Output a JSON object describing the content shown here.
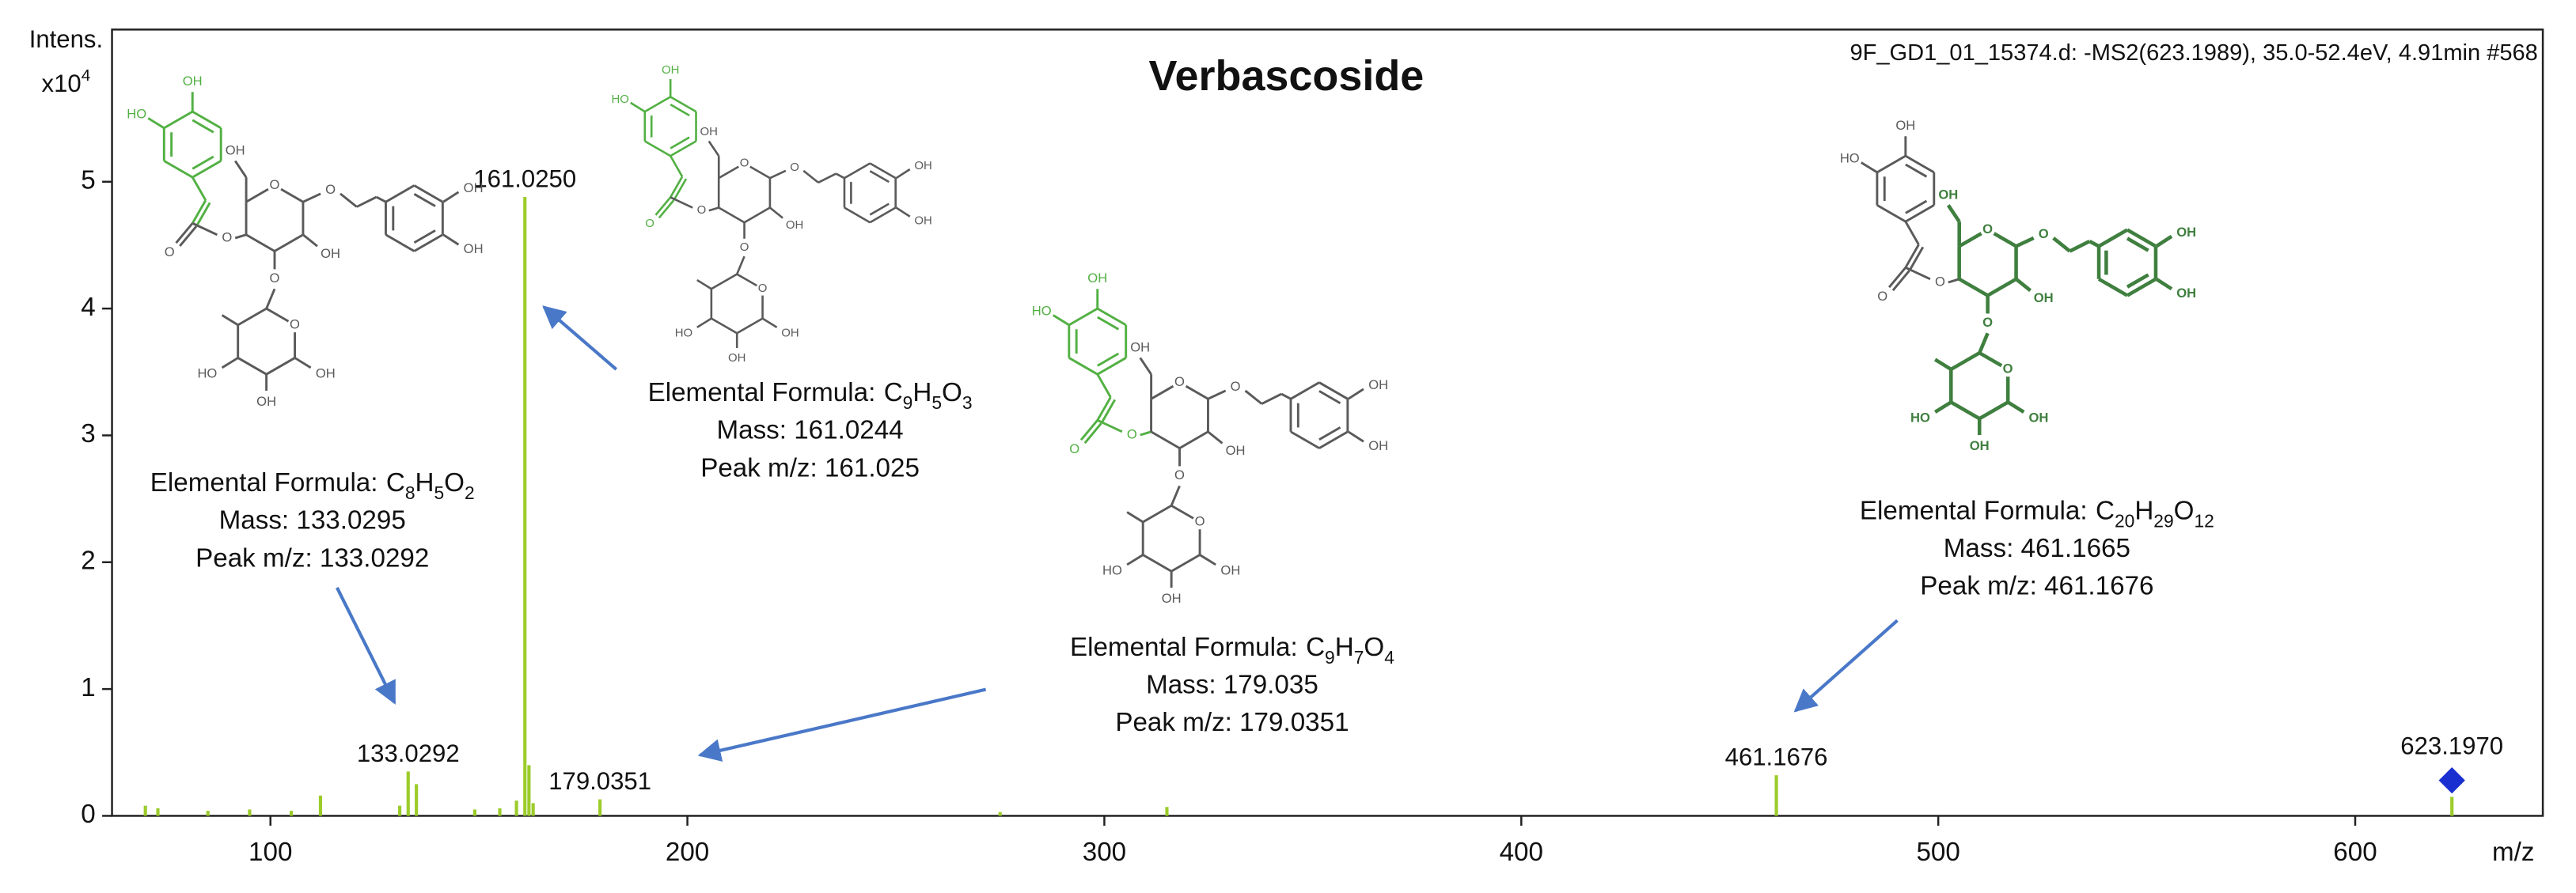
{
  "chart_data": {
    "type": "stem",
    "title": "Verbascoside",
    "info": "9F_GD1_01_15374.d: -MS2(623.1989), 35.0-52.4eV, 4.91min #568",
    "ylabel": "Intens.",
    "yunit_base": "x10",
    "yunit_exp": "4",
    "xlabel": "m/z",
    "xlim": [
      62,
      645
    ],
    "xticks": [
      100,
      200,
      300,
      400,
      500,
      600
    ],
    "ylim": [
      0,
      6.2
    ],
    "yticks": [
      0,
      1,
      2,
      3,
      4,
      5
    ],
    "color": "#9ccc2a",
    "x": [
      70,
      73,
      85,
      95,
      105,
      112,
      131,
      133.0292,
      135,
      149,
      155,
      159,
      161.025,
      162,
      163,
      179.0351,
      275,
      315,
      461.1676,
      623.197
    ],
    "values": [
      0.08,
      0.06,
      0.04,
      0.05,
      0.04,
      0.16,
      0.08,
      0.35,
      0.25,
      0.05,
      0.06,
      0.12,
      4.88,
      0.4,
      0.1,
      0.13,
      0.03,
      0.07,
      0.32,
      0.15
    ],
    "x_labels": [
      null,
      null,
      null,
      null,
      null,
      null,
      null,
      "133.0292",
      null,
      null,
      null,
      null,
      "161.0250",
      null,
      null,
      "179.0351",
      null,
      null,
      "461.1676",
      "623.1970"
    ],
    "markers": [
      null,
      null,
      null,
      null,
      null,
      null,
      null,
      null,
      null,
      null,
      null,
      null,
      null,
      null,
      null,
      null,
      null,
      null,
      null,
      "diamond"
    ],
    "marker_color": "#1a2fd0",
    "annotations": [
      {
        "formula_label": "Elemental Formula:",
        "formula": [
          [
            "C",
            "8"
          ],
          [
            "H",
            "5"
          ],
          [
            "O",
            "2"
          ]
        ],
        "mass": "Mass: 133.0295",
        "peak": "Peak m/z: 133.0292"
      },
      {
        "formula_label": "Elemental Formula:",
        "formula": [
          [
            "C",
            "9"
          ],
          [
            "H",
            "5"
          ],
          [
            "O",
            "3"
          ]
        ],
        "mass": "Mass: 161.0244",
        "peak": "Peak m/z: 161.025"
      },
      {
        "formula_label": "Elemental Formula:",
        "formula": [
          [
            "C",
            "9"
          ],
          [
            "H",
            "7"
          ],
          [
            "O",
            "4"
          ]
        ],
        "mass": "Mass: 179.035",
        "peak": "Peak m/z: 179.0351"
      },
      {
        "formula_label": "Elemental Formula:",
        "formula": [
          [
            "C",
            "20"
          ],
          [
            "H",
            "29"
          ],
          [
            "O",
            "12"
          ]
        ],
        "mass": "Mass: 461.1665",
        "peak": "Peak m/z: 461.1676"
      }
    ],
    "structure_labels": [
      "OH",
      "HO",
      "O"
    ]
  }
}
